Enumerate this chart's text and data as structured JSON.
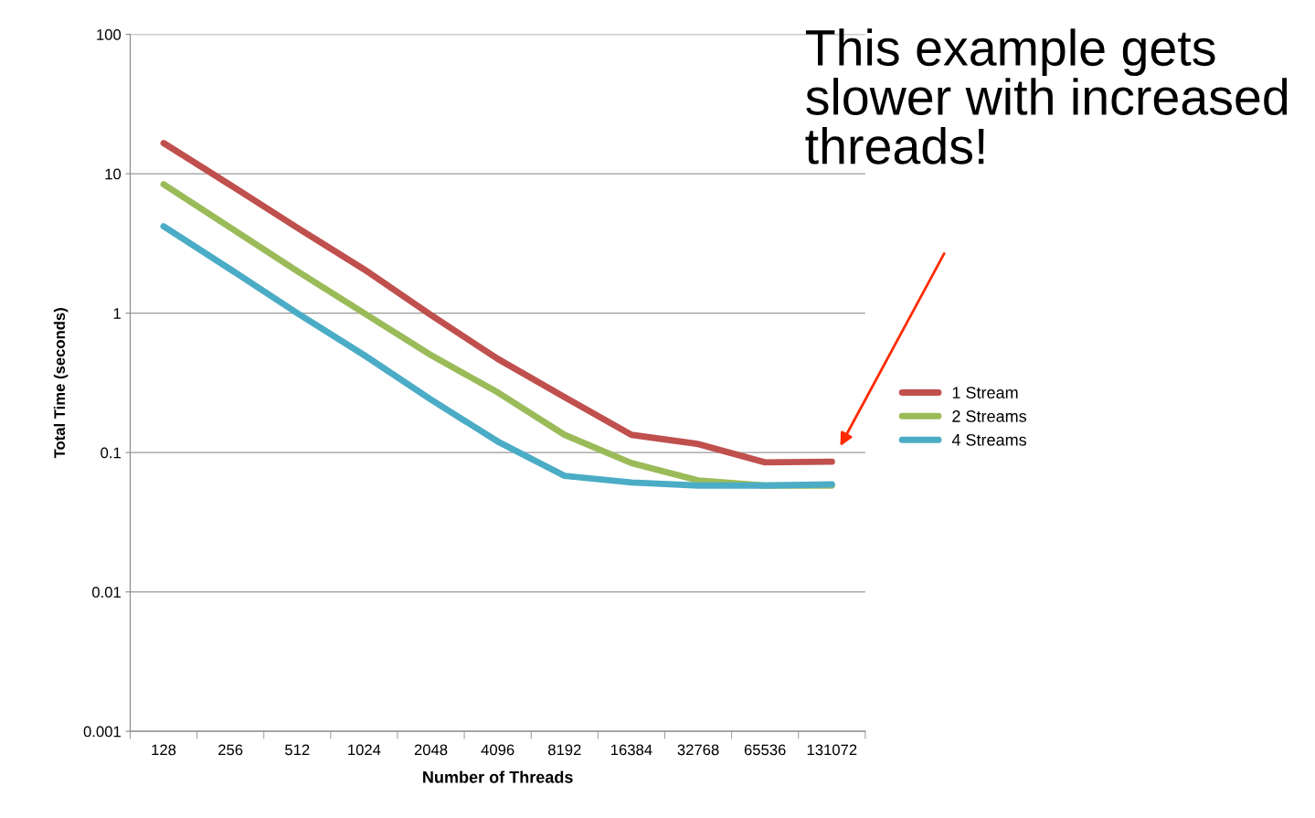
{
  "chart_data": {
    "type": "line",
    "xlabel": "Number of Threads",
    "ylabel": "Total Time (seconds)",
    "categories": [
      "128",
      "256",
      "512",
      "1024",
      "2048",
      "4096",
      "8192",
      "16384",
      "32768",
      "65536",
      "131072"
    ],
    "series": [
      {
        "name": "1 Stream",
        "color": "#c0504d",
        "values": [
          16.6,
          8.3,
          4.1,
          2.06,
          0.97,
          0.47,
          0.25,
          0.134,
          0.115,
          0.085,
          0.086
        ]
      },
      {
        "name": "2 Streams",
        "color": "#9bbb59",
        "values": [
          8.4,
          4.1,
          2.0,
          1.0,
          0.5,
          0.27,
          0.134,
          0.084,
          0.063,
          0.058,
          0.058
        ]
      },
      {
        "name": "4 Streams",
        "color": "#4bacc6",
        "values": [
          4.2,
          2.06,
          1.0,
          0.5,
          0.24,
          0.12,
          0.068,
          0.061,
          0.058,
          0.058,
          0.059
        ]
      }
    ],
    "log": "y",
    "ylim": [
      0.001,
      100
    ],
    "yticks": [
      0.001,
      0.01,
      0.1,
      1,
      10,
      100
    ],
    "grid": "y",
    "legend": "right",
    "marker": "none",
    "annotations": [
      "This example gets slower with increased threads!"
    ]
  }
}
